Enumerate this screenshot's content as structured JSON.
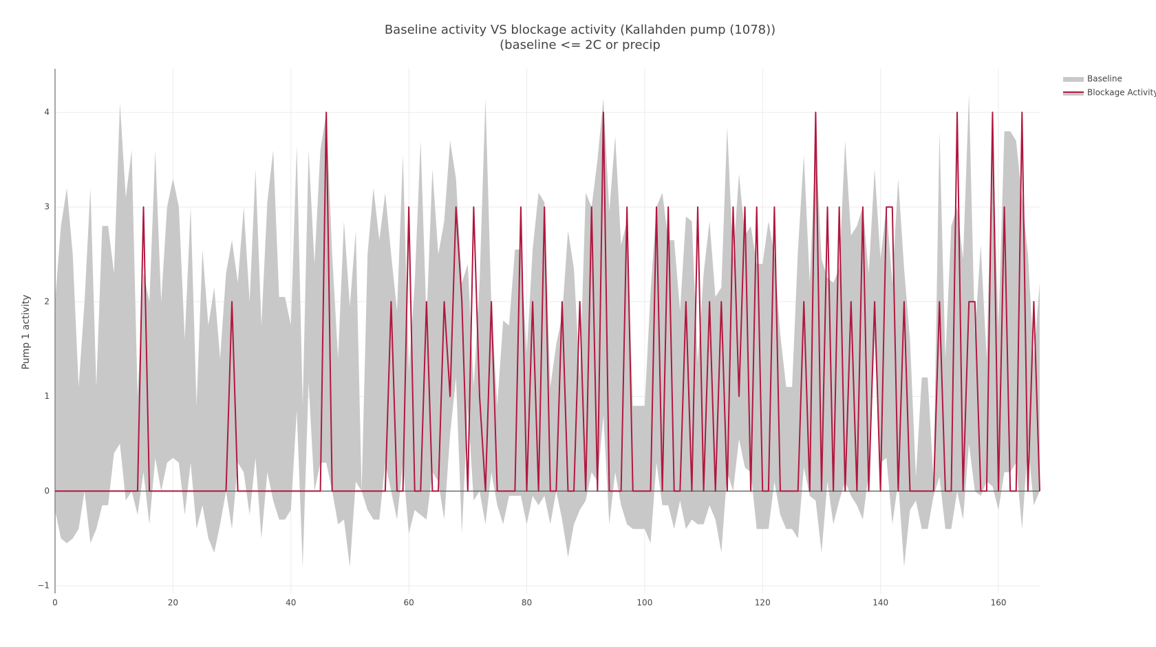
{
  "chart_data": {
    "type": "band-line",
    "title": "Baseline activity VS blockage activity (Kallahden pump (1078))",
    "subtitle": "(baseline <= 2C or precip",
    "y_label": "Pump 1 activity",
    "x": [
      0,
      1,
      2,
      3,
      4,
      5,
      6,
      7,
      8,
      9,
      10,
      11,
      12,
      13,
      14,
      15,
      16,
      17,
      18,
      19,
      20,
      21,
      22,
      23,
      24,
      25,
      26,
      27,
      28,
      29,
      30,
      31,
      32,
      33,
      34,
      35,
      36,
      37,
      38,
      39,
      40,
      41,
      42,
      43,
      44,
      45,
      46,
      47,
      48,
      49,
      50,
      51,
      52,
      53,
      54,
      55,
      56,
      57,
      58,
      59,
      60,
      61,
      62,
      63,
      64,
      65,
      66,
      67,
      68,
      69,
      70,
      71,
      72,
      73,
      74,
      75,
      76,
      77,
      78,
      79,
      80,
      81,
      82,
      83,
      84,
      85,
      86,
      87,
      88,
      89,
      90,
      91,
      92,
      93,
      94,
      95,
      96,
      97,
      98,
      99,
      100,
      101,
      102,
      103,
      104,
      105,
      106,
      107,
      108,
      109,
      110,
      111,
      112,
      113,
      114,
      115,
      116,
      117,
      118,
      119,
      120,
      121,
      122,
      123,
      124,
      125,
      126,
      127,
      128,
      129,
      130,
      131,
      132,
      133,
      134,
      135,
      136,
      137,
      138,
      139,
      140,
      141,
      142,
      143,
      144,
      145,
      146,
      147,
      148,
      149,
      150,
      151,
      152,
      153,
      154,
      155,
      156,
      157,
      158,
      159,
      160,
      161,
      162,
      163,
      164,
      165,
      166,
      167
    ],
    "series": [
      {
        "name": "Baseline",
        "color": "#c8c8c8",
        "values": [
          2.0,
          2.8,
          3.2,
          2.5,
          1.1,
          2.0,
          3.2,
          1.1,
          2.8,
          2.8,
          2.3,
          4.1,
          3.1,
          3.6,
          1.0,
          2.3,
          2.0,
          3.6,
          2.0,
          3.0,
          3.3,
          3.0,
          1.6,
          3.0,
          0.9,
          2.55,
          1.75,
          2.15,
          1.4,
          2.3,
          2.65,
          2.2,
          3.0,
          2.0,
          3.4,
          1.75,
          3.05,
          3.6,
          2.05,
          2.05,
          1.75,
          3.65,
          0.9,
          3.6,
          2.4,
          3.6,
          4.0,
          2.5,
          1.4,
          2.85,
          1.95,
          2.75,
          0.0,
          2.5,
          3.2,
          2.65,
          3.15,
          2.5,
          1.9,
          3.55,
          1.25,
          2.2,
          3.7,
          1.8,
          3.4,
          2.5,
          2.85,
          3.7,
          3.3,
          2.2,
          2.4,
          1.1,
          2.2,
          4.15,
          1.95,
          0.9,
          1.8,
          1.75,
          2.55,
          2.55,
          1.45,
          2.55,
          3.15,
          3.05,
          1.1,
          1.55,
          1.85,
          2.75,
          2.35,
          1.2,
          3.15,
          3.0,
          3.5,
          4.15,
          2.95,
          3.75,
          2.6,
          2.85,
          0.9,
          0.9,
          0.9,
          2.1,
          3.0,
          3.15,
          2.65,
          2.65,
          1.9,
          2.9,
          2.85,
          1.35,
          2.3,
          2.85,
          2.05,
          2.15,
          3.85,
          2.45,
          3.35,
          2.7,
          2.8,
          2.4,
          2.4,
          2.85,
          2.5,
          1.65,
          1.1,
          1.1,
          2.55,
          3.55,
          2.2,
          3.7,
          2.45,
          2.25,
          2.2,
          2.35,
          3.7,
          2.7,
          2.8,
          3.0,
          2.3,
          3.4,
          2.45,
          3.0,
          2.2,
          3.3,
          2.35,
          1.6,
          0.15,
          1.2,
          1.2,
          0.1,
          3.8,
          1.4,
          2.8,
          3.0,
          2.45,
          4.2,
          1.65,
          2.6,
          1.4,
          3.85,
          1.7,
          3.8,
          3.8,
          3.7,
          3.1,
          2.5,
          1.4,
          2.2
        ],
        "lower": [
          -0.2,
          -0.5,
          -0.55,
          -0.5,
          -0.4,
          0.0,
          -0.55,
          -0.4,
          -0.15,
          -0.15,
          0.4,
          0.5,
          -0.1,
          0.0,
          -0.25,
          0.2,
          -0.35,
          0.35,
          0.0,
          0.3,
          0.35,
          0.3,
          -0.25,
          0.3,
          -0.4,
          -0.15,
          -0.5,
          -0.65,
          -0.35,
          0.0,
          -0.4,
          0.3,
          0.2,
          -0.25,
          0.35,
          -0.5,
          0.2,
          -0.1,
          -0.3,
          -0.3,
          -0.2,
          0.85,
          -0.8,
          1.15,
          0.0,
          0.3,
          0.3,
          0.0,
          -0.35,
          -0.3,
          -0.8,
          0.1,
          0.0,
          -0.2,
          -0.3,
          -0.3,
          0.3,
          0.0,
          -0.3,
          0.3,
          -0.45,
          -0.2,
          -0.25,
          -0.3,
          0.2,
          0.1,
          -0.3,
          0.6,
          1.2,
          -0.45,
          0.9,
          -0.1,
          0.0,
          -0.35,
          0.2,
          -0.15,
          -0.35,
          -0.05,
          -0.05,
          -0.05,
          -0.35,
          -0.05,
          -0.15,
          -0.05,
          -0.35,
          0.0,
          -0.3,
          -0.7,
          -0.35,
          -0.2,
          -0.1,
          0.2,
          0.1,
          0.8,
          -0.35,
          0.2,
          -0.15,
          -0.35,
          -0.4,
          -0.4,
          -0.4,
          -0.55,
          0.3,
          -0.15,
          -0.15,
          -0.4,
          -0.1,
          -0.4,
          -0.3,
          -0.35,
          -0.35,
          -0.15,
          -0.3,
          -0.65,
          0.2,
          0.0,
          0.55,
          0.25,
          0.2,
          -0.4,
          -0.4,
          -0.4,
          0.1,
          -0.25,
          -0.4,
          -0.4,
          -0.5,
          0.25,
          -0.05,
          -0.1,
          -0.65,
          0.1,
          -0.35,
          -0.1,
          0.1,
          -0.05,
          -0.15,
          -0.3,
          0.2,
          1.6,
          0.3,
          0.35,
          -0.35,
          0.1,
          -0.8,
          -0.2,
          -0.1,
          -0.4,
          -0.4,
          -0.05,
          0.15,
          -0.4,
          -0.4,
          0.0,
          -0.3,
          0.5,
          0.0,
          -0.05,
          0.1,
          0.05,
          -0.2,
          0.2,
          0.2,
          0.3,
          -0.4,
          0.5,
          -0.15,
          0.0
        ]
      },
      {
        "name": "Blockage Activity",
        "color": "#b0173f",
        "values": [
          0,
          0,
          0,
          0,
          0,
          0,
          0,
          0,
          0,
          0,
          0,
          0,
          0,
          0,
          0,
          3,
          0,
          0,
          0,
          0,
          0,
          0,
          0,
          0,
          0,
          0,
          0,
          0,
          0,
          0,
          2,
          0,
          0,
          0,
          0,
          0,
          0,
          0,
          0,
          0,
          0,
          0,
          0,
          0,
          0,
          0,
          4,
          0,
          0,
          0,
          0,
          0,
          0,
          0,
          0,
          0,
          0,
          2,
          0,
          0,
          3,
          0,
          0,
          2,
          0,
          0,
          2,
          1,
          3,
          2,
          0,
          3,
          1,
          0,
          2,
          0,
          0,
          0,
          0,
          3,
          0,
          2,
          0,
          3,
          0,
          0,
          2,
          0,
          0,
          2,
          0,
          3,
          0,
          4,
          0,
          0,
          0,
          3,
          0,
          0,
          0,
          0,
          3,
          0,
          3,
          0,
          0,
          2,
          0,
          3,
          0,
          2,
          0,
          2,
          0,
          3,
          1,
          3,
          0,
          3,
          0,
          0,
          3,
          0,
          0,
          0,
          0,
          2,
          0,
          4,
          0,
          3,
          0,
          3,
          0,
          2,
          0,
          3,
          0,
          2,
          0,
          3,
          3,
          0,
          2,
          0,
          0,
          0,
          0,
          0,
          2,
          0,
          0,
          4,
          0,
          2,
          2,
          0,
          0,
          4,
          0,
          3,
          0,
          0,
          4,
          0,
          2,
          0
        ]
      }
    ],
    "xlim": [
      0,
      167
    ],
    "xticks": [
      0,
      20,
      40,
      60,
      80,
      100,
      120,
      140,
      160
    ],
    "ylim": [
      -1.08,
      4.46
    ],
    "yticks": [
      {
        "value": -1,
        "label": "−1"
      },
      0,
      1,
      2,
      3,
      4
    ],
    "grid": true,
    "legend": "top-right"
  }
}
